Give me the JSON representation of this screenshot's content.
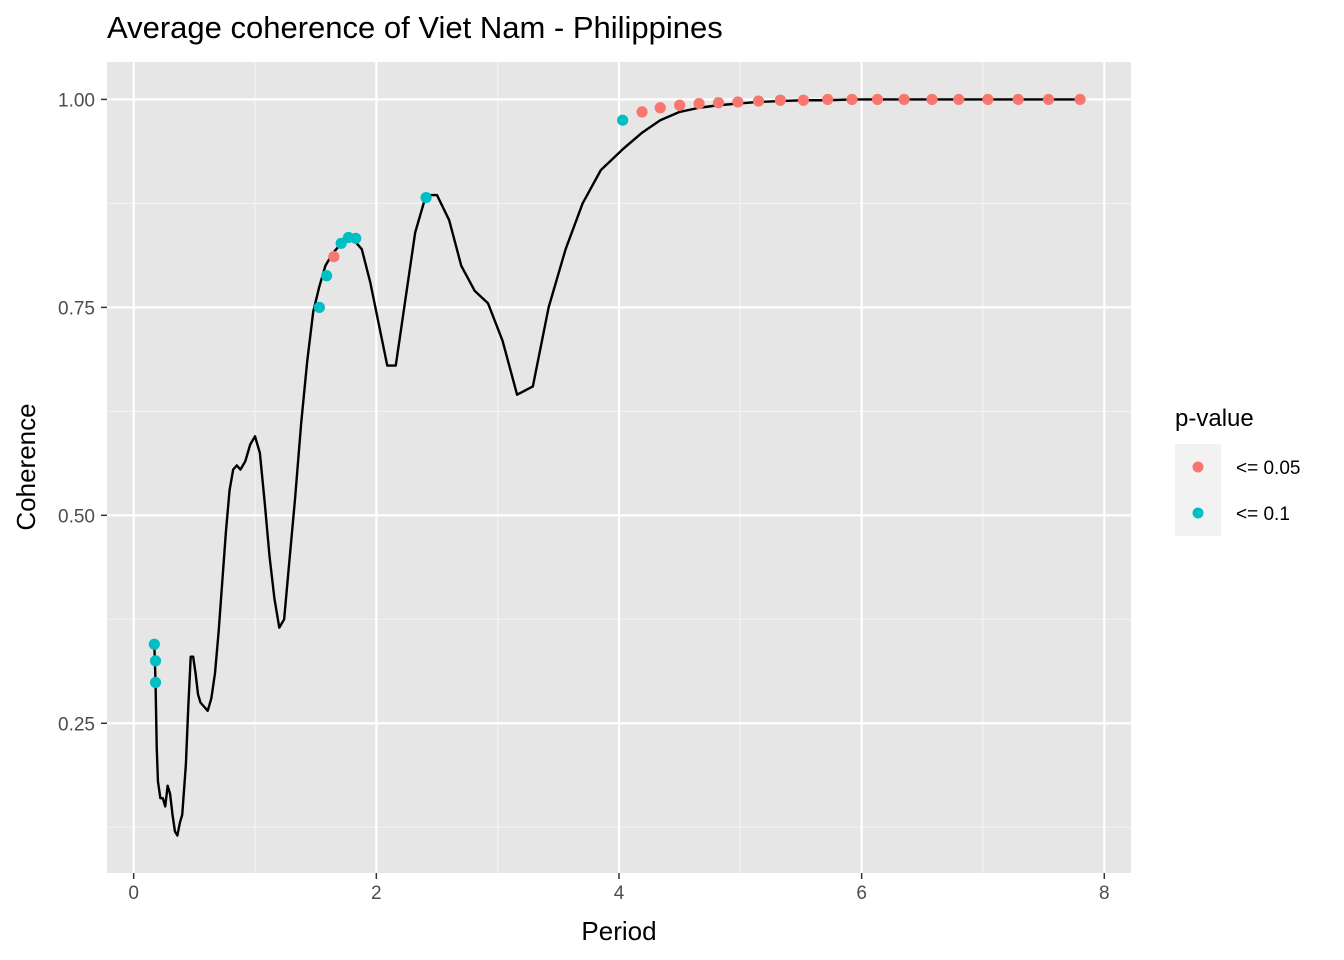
{
  "chart_data": {
    "type": "line",
    "title": "Average coherence of Viet Nam - Philippines",
    "xlabel": "Period",
    "ylabel": "Coherence",
    "xlim": [
      -0.22,
      8.22
    ],
    "ylim": [
      0.07,
      1.045
    ],
    "x_ticks": [
      0,
      2,
      4,
      6,
      8
    ],
    "y_ticks": [
      0.25,
      0.5,
      0.75,
      1.0
    ],
    "x_tick_labels": [
      "0",
      "2",
      "4",
      "6",
      "8"
    ],
    "y_tick_labels": [
      "0.25",
      "0.50",
      "0.75",
      "1.00"
    ],
    "x_minor": [
      1,
      3,
      5,
      7
    ],
    "y_minor": [
      0.125,
      0.375,
      0.625,
      0.875
    ],
    "grid": true,
    "panel_background": "#e6e6e6",
    "line_color": "#000000",
    "line": {
      "x": [
        0.17,
        0.18,
        0.19,
        0.2,
        0.22,
        0.24,
        0.26,
        0.28,
        0.3,
        0.32,
        0.34,
        0.36,
        0.38,
        0.4,
        0.43,
        0.45,
        0.47,
        0.49,
        0.51,
        0.53,
        0.55,
        0.58,
        0.61,
        0.64,
        0.67,
        0.7,
        0.73,
        0.76,
        0.79,
        0.82,
        0.85,
        0.88,
        0.92,
        0.96,
        1.0,
        1.04,
        1.08,
        1.12,
        1.16,
        1.2,
        1.24,
        1.28,
        1.33,
        1.38,
        1.43,
        1.48,
        1.53,
        1.58,
        1.64,
        1.7,
        1.76,
        1.82,
        1.88,
        1.95,
        2.02,
        2.09,
        2.16,
        2.24,
        2.32,
        2.41,
        2.5,
        2.6,
        2.7,
        2.81,
        2.92,
        3.04,
        3.16,
        3.29,
        3.42,
        3.56,
        3.7,
        3.85,
        4.03,
        4.19,
        4.34,
        4.5,
        4.66,
        4.82,
        4.98,
        5.15,
        5.33,
        5.52,
        5.72,
        5.92,
        6.13,
        6.35,
        6.58,
        6.8,
        7.04,
        7.29,
        7.54,
        7.8
      ],
      "y": [
        0.345,
        0.3,
        0.22,
        0.18,
        0.16,
        0.16,
        0.15,
        0.175,
        0.165,
        0.14,
        0.12,
        0.115,
        0.13,
        0.14,
        0.2,
        0.27,
        0.33,
        0.33,
        0.31,
        0.285,
        0.275,
        0.27,
        0.265,
        0.28,
        0.31,
        0.36,
        0.42,
        0.48,
        0.53,
        0.555,
        0.56,
        0.555,
        0.565,
        0.585,
        0.595,
        0.575,
        0.515,
        0.45,
        0.4,
        0.365,
        0.375,
        0.44,
        0.52,
        0.61,
        0.685,
        0.745,
        0.775,
        0.8,
        0.815,
        0.825,
        0.835,
        0.83,
        0.82,
        0.78,
        0.73,
        0.68,
        0.68,
        0.76,
        0.84,
        0.885,
        0.885,
        0.855,
        0.8,
        0.77,
        0.755,
        0.71,
        0.645,
        0.655,
        0.75,
        0.82,
        0.875,
        0.915,
        0.94,
        0.96,
        0.975,
        0.985,
        0.99,
        0.993,
        0.995,
        0.997,
        0.998,
        0.999,
        0.999,
        1.0,
        1.0,
        1.0,
        1.0,
        1.0,
        1.0,
        1.0,
        1.0,
        1.0
      ]
    },
    "legend": {
      "title": "p-value",
      "placement": "right",
      "entries": [
        {
          "label": "<= 0.05",
          "color": "#f8766d"
        },
        {
          "label": "<= 0.1",
          "color": "#00bfc4"
        }
      ]
    },
    "points": [
      {
        "x": 0.17,
        "y": 0.345,
        "group": "<= 0.1"
      },
      {
        "x": 0.18,
        "y": 0.325,
        "group": "<= 0.1"
      },
      {
        "x": 0.18,
        "y": 0.299,
        "group": "<= 0.1"
      },
      {
        "x": 1.53,
        "y": 0.75,
        "group": "<= 0.1"
      },
      {
        "x": 1.59,
        "y": 0.788,
        "group": "<= 0.1"
      },
      {
        "x": 1.65,
        "y": 0.811,
        "group": "<= 0.05"
      },
      {
        "x": 1.71,
        "y": 0.827,
        "group": "<= 0.1"
      },
      {
        "x": 1.77,
        "y": 0.834,
        "group": "<= 0.1"
      },
      {
        "x": 1.83,
        "y": 0.833,
        "group": "<= 0.1"
      },
      {
        "x": 2.41,
        "y": 0.882,
        "group": "<= 0.1"
      },
      {
        "x": 4.03,
        "y": 0.975,
        "group": "<= 0.1"
      },
      {
        "x": 4.19,
        "y": 0.985,
        "group": "<= 0.05"
      },
      {
        "x": 4.34,
        "y": 0.99,
        "group": "<= 0.05"
      },
      {
        "x": 4.5,
        "y": 0.993,
        "group": "<= 0.05"
      },
      {
        "x": 4.66,
        "y": 0.995,
        "group": "<= 0.05"
      },
      {
        "x": 4.82,
        "y": 0.996,
        "group": "<= 0.05"
      },
      {
        "x": 4.98,
        "y": 0.997,
        "group": "<= 0.05"
      },
      {
        "x": 5.15,
        "y": 0.998,
        "group": "<= 0.05"
      },
      {
        "x": 5.33,
        "y": 0.999,
        "group": "<= 0.05"
      },
      {
        "x": 5.52,
        "y": 0.999,
        "group": "<= 0.05"
      },
      {
        "x": 5.72,
        "y": 1.0,
        "group": "<= 0.05"
      },
      {
        "x": 5.92,
        "y": 1.0,
        "group": "<= 0.05"
      },
      {
        "x": 6.13,
        "y": 1.0,
        "group": "<= 0.05"
      },
      {
        "x": 6.35,
        "y": 1.0,
        "group": "<= 0.05"
      },
      {
        "x": 6.58,
        "y": 1.0,
        "group": "<= 0.05"
      },
      {
        "x": 6.8,
        "y": 1.0,
        "group": "<= 0.05"
      },
      {
        "x": 7.04,
        "y": 1.0,
        "group": "<= 0.05"
      },
      {
        "x": 7.29,
        "y": 1.0,
        "group": "<= 0.05"
      },
      {
        "x": 7.54,
        "y": 1.0,
        "group": "<= 0.05"
      },
      {
        "x": 7.8,
        "y": 1.0,
        "group": "<= 0.05"
      }
    ]
  }
}
